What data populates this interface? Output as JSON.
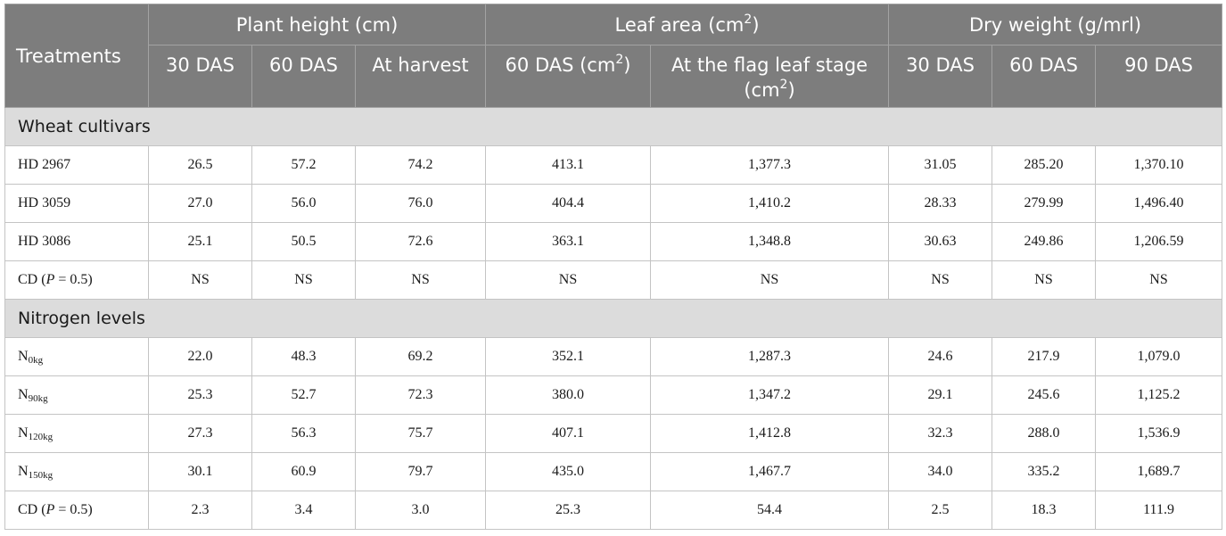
{
  "header": {
    "treatments": "Treatments",
    "groups": {
      "plant_height": "Plant height (cm)",
      "leaf_area": "Leaf area (cm",
      "leaf_area_sup": "2",
      "leaf_area_end": ")",
      "dry_weight": "Dry weight (g/mrl)"
    },
    "sub": {
      "ph_30": "30 DAS",
      "ph_60": "60 DAS",
      "ph_harvest": "At harvest",
      "la_60": "60 DAS (cm",
      "la_60_sup": "2",
      "la_60_end": ")",
      "la_flag": "At the flag leaf stage (cm",
      "la_flag_sup": "2",
      "la_flag_end": ")",
      "dw_30": "30 DAS",
      "dw_60": "60 DAS",
      "dw_90": "90 DAS"
    }
  },
  "sections": {
    "wheat": "Wheat cultivars",
    "nitrogen": "Nitrogen levels"
  },
  "wheat_rows": [
    {
      "label": "HD 2967",
      "v": [
        "26.5",
        "57.2",
        "74.2",
        "413.1",
        "1,377.3",
        "31.05",
        "285.20",
        "1,370.10"
      ]
    },
    {
      "label": "HD 3059",
      "v": [
        "27.0",
        "56.0",
        "76.0",
        "404.4",
        "1,410.2",
        "28.33",
        "279.99",
        "1,496.40"
      ]
    },
    {
      "label": "HD 3086",
      "v": [
        "25.1",
        "50.5",
        "72.6",
        "363.1",
        "1,348.8",
        "30.63",
        "249.86",
        "1,206.59"
      ]
    }
  ],
  "wheat_cd": {
    "pre": "CD (",
    "p": "P",
    "post": " = 0.5)",
    "v": [
      "NS",
      "NS",
      "NS",
      "NS",
      "NS",
      "NS",
      "NS",
      "NS"
    ]
  },
  "nitrogen_rows": [
    {
      "base": "N",
      "sub": "0kg",
      "v": [
        "22.0",
        "48.3",
        "69.2",
        "352.1",
        "1,287.3",
        "24.6",
        "217.9",
        "1,079.0"
      ]
    },
    {
      "base": "N",
      "sub": "90kg",
      "v": [
        "25.3",
        "52.7",
        "72.3",
        "380.0",
        "1,347.2",
        "29.1",
        "245.6",
        "1,125.2"
      ]
    },
    {
      "base": "N",
      "sub": "120kg",
      "v": [
        "27.3",
        "56.3",
        "75.7",
        "407.1",
        "1,412.8",
        "32.3",
        "288.0",
        "1,536.9"
      ]
    },
    {
      "base": "N",
      "sub": "150kg",
      "v": [
        "30.1",
        "60.9",
        "79.7",
        "435.0",
        "1,467.7",
        "34.0",
        "335.2",
        "1,689.7"
      ]
    }
  ],
  "nitrogen_cd": {
    "pre": "CD (",
    "p": "P",
    "post": " = 0.5)",
    "v": [
      "2.3",
      "3.4",
      "3.0",
      "25.3",
      "54.4",
      "2.5",
      "18.3",
      "111.9"
    ]
  }
}
